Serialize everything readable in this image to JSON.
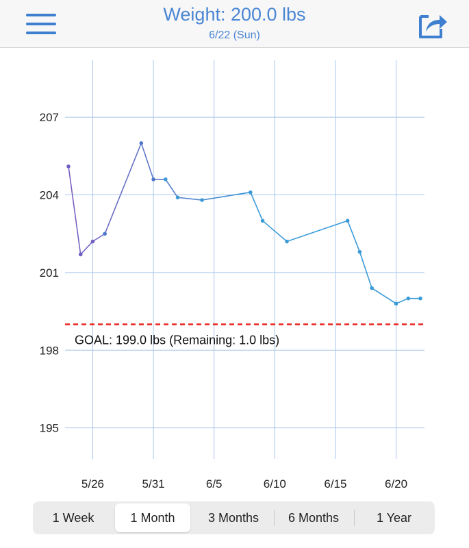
{
  "header": {
    "title": "Weight: 200.0 lbs",
    "subtitle": "6/22 (Sun)",
    "menu_icon": "hamburger-menu-icon",
    "share_icon": "share-icon",
    "accent": "#4a86d4"
  },
  "chart_data": {
    "type": "line",
    "x_ticks": [
      "5/26",
      "5/31",
      "6/5",
      "6/10",
      "6/15",
      "6/20"
    ],
    "y_ticks": [
      195,
      198,
      201,
      204,
      207
    ],
    "ylim": [
      193.8,
      209.2
    ],
    "xlim": [
      "5/24",
      "6/22"
    ],
    "grid": true,
    "series": [
      {
        "points": [
          [
            "5/24",
            205.1
          ],
          [
            "5/25",
            201.7
          ],
          [
            "5/26",
            202.2
          ],
          [
            "5/27",
            202.5
          ],
          [
            "5/30",
            206.0
          ],
          [
            "5/31",
            204.6
          ],
          [
            "6/1",
            204.6
          ],
          [
            "6/2",
            203.9
          ],
          [
            "6/4",
            203.8
          ],
          [
            "6/8",
            204.1
          ],
          [
            "6/9",
            203.0
          ],
          [
            "6/11",
            202.2
          ],
          [
            "6/16",
            203.0
          ],
          [
            "6/17",
            201.8
          ],
          [
            "6/18",
            200.4
          ],
          [
            "6/20",
            199.8
          ],
          [
            "6/21",
            200.0
          ],
          [
            "6/22",
            200.0
          ]
        ],
        "color_start": "#7a5fc0",
        "color_end": "#3a9bd8"
      }
    ],
    "goal": {
      "value": 199.0,
      "label": "GOAL: 199.0 lbs (Remaining: 1.0 lbs)",
      "color": "#e8231f"
    },
    "grid_color": "#a8c4ea"
  },
  "range_tabs": {
    "items": [
      "1 Week",
      "1 Month",
      "3 Months",
      "6 Months",
      "1 Year"
    ],
    "selected": "1 Month"
  }
}
